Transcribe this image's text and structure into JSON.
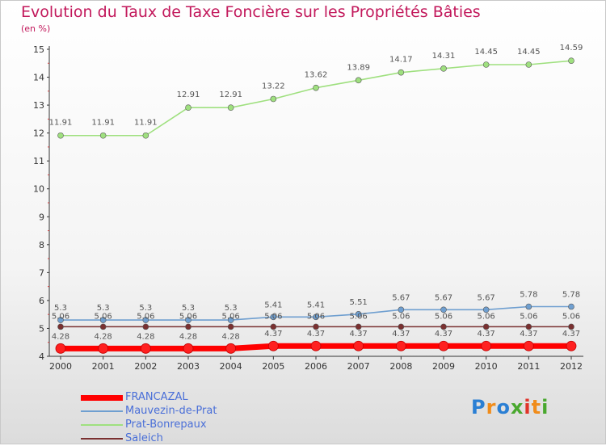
{
  "title": "Evolution du Taux de Taxe Foncière sur les Propriétés Bâties",
  "subtitle": "(en %)",
  "logo": {
    "text": "Proxiti",
    "colors": [
      "#2a7fd4",
      "#f08c1a",
      "#2a7fd4",
      "#49a82e",
      "#e0342a",
      "#f08c1a",
      "#49a82e"
    ]
  },
  "chart_data": {
    "type": "line",
    "x": [
      "2000",
      "2001",
      "2002",
      "2003",
      "2004",
      "2005",
      "2006",
      "2007",
      "2008",
      "2009",
      "2010",
      "2011",
      "2012"
    ],
    "ylim": [
      4,
      15
    ],
    "yticks": [
      4,
      5,
      6,
      7,
      8,
      9,
      10,
      11,
      12,
      13,
      14,
      15
    ],
    "grid": false,
    "legend_placement": "bottom-left",
    "series": [
      {
        "name": "FRANCAZAL",
        "color": "#ff0000",
        "values": [
          4.28,
          4.28,
          4.28,
          4.28,
          4.28,
          4.37,
          4.37,
          4.37,
          4.37,
          4.37,
          4.37,
          4.37,
          4.37
        ],
        "labels": [
          "4.28",
          "4.28",
          "4.28",
          "4.28",
          "4.28",
          "4.37",
          "4.37",
          "4.37",
          "4.37",
          "4.37",
          "4.37",
          "4.37",
          "4.37"
        ]
      },
      {
        "name": "Mauvezin-de-Prat",
        "color": "#6f9fd0",
        "values": [
          5.3,
          5.3,
          5.3,
          5.3,
          5.3,
          5.41,
          5.41,
          5.51,
          5.67,
          5.67,
          5.67,
          5.78,
          5.78
        ],
        "labels": [
          "5.3",
          "5.3",
          "5.3",
          "5.3",
          "5.3",
          "5.41",
          "5.41",
          "5.51",
          "5.67",
          "5.67",
          "5.67",
          "5.78",
          "5.78"
        ]
      },
      {
        "name": "Prat-Bonrepaux",
        "color": "#9fe07f",
        "values": [
          11.91,
          11.91,
          11.91,
          12.91,
          12.91,
          13.22,
          13.62,
          13.89,
          14.17,
          14.31,
          14.45,
          14.45,
          14.59
        ],
        "labels": [
          "11.91",
          "11.91",
          "11.91",
          "12.91",
          "12.91",
          "13.22",
          "13.62",
          "13.89",
          "14.17",
          "14.31",
          "14.45",
          "14.45",
          "14.59"
        ]
      },
      {
        "name": "Saleich",
        "color": "#7a3030",
        "values": [
          5.06,
          5.06,
          5.06,
          5.06,
          5.06,
          5.06,
          5.06,
          5.06,
          5.06,
          5.06,
          5.06,
          5.06,
          5.06
        ],
        "labels": [
          "5.06",
          "5.06",
          "5.06",
          "5.06",
          "5.06",
          "5.06",
          "5.06",
          "5.06",
          "5.06",
          "5.06",
          "5.06",
          "5.06",
          "5.06"
        ]
      }
    ]
  }
}
